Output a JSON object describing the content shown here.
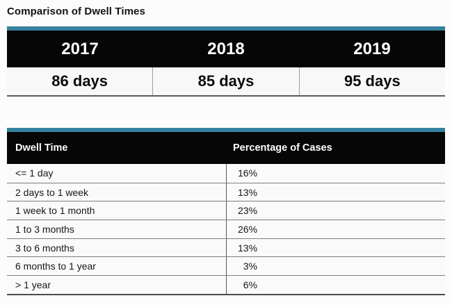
{
  "page": {
    "title": "Comparison of Dwell Times"
  },
  "colors": {
    "accent_teal": "#35819f",
    "header_black": "#060606",
    "row_background": "#f9f8f8"
  },
  "summary_table": {
    "columns": [
      {
        "year": "2017",
        "value": "86 days"
      },
      {
        "year": "2018",
        "value": "85 days"
      },
      {
        "year": "2019",
        "value": "95 days"
      }
    ]
  },
  "detail_table": {
    "headers": {
      "dwell_time": "Dwell Time",
      "percentage": "Percentage of Cases"
    },
    "rows": [
      {
        "dwell_time": "<= 1 day",
        "percentage": "16%"
      },
      {
        "dwell_time": "2 days to 1 week",
        "percentage": "13%"
      },
      {
        "dwell_time": "1 week to 1 month",
        "percentage": "23%"
      },
      {
        "dwell_time": "1 to 3 months",
        "percentage": "26%"
      },
      {
        "dwell_time": "3 to 6 months",
        "percentage": "13%"
      },
      {
        "dwell_time": "6 months to 1 year",
        "percentage": "3%"
      },
      {
        "dwell_time": "> 1 year",
        "percentage": "6%"
      }
    ]
  },
  "chart_data": [
    {
      "type": "table",
      "title": "Comparison of Dwell Times",
      "columns": [
        "2017",
        "2018",
        "2019"
      ],
      "rows": [
        [
          "86 days",
          "85 days",
          "95 days"
        ]
      ]
    },
    {
      "type": "table",
      "columns": [
        "Dwell Time",
        "Percentage of Cases"
      ],
      "rows": [
        [
          "<= 1 day",
          "16%"
        ],
        [
          "2 days to 1 week",
          "13%"
        ],
        [
          "1 week to 1 month",
          "23%"
        ],
        [
          "1 to 3 months",
          "26%"
        ],
        [
          "3 to 6 months",
          "13%"
        ],
        [
          "6 months to 1 year",
          "3%"
        ],
        [
          "> 1 year",
          "6%"
        ]
      ]
    }
  ]
}
